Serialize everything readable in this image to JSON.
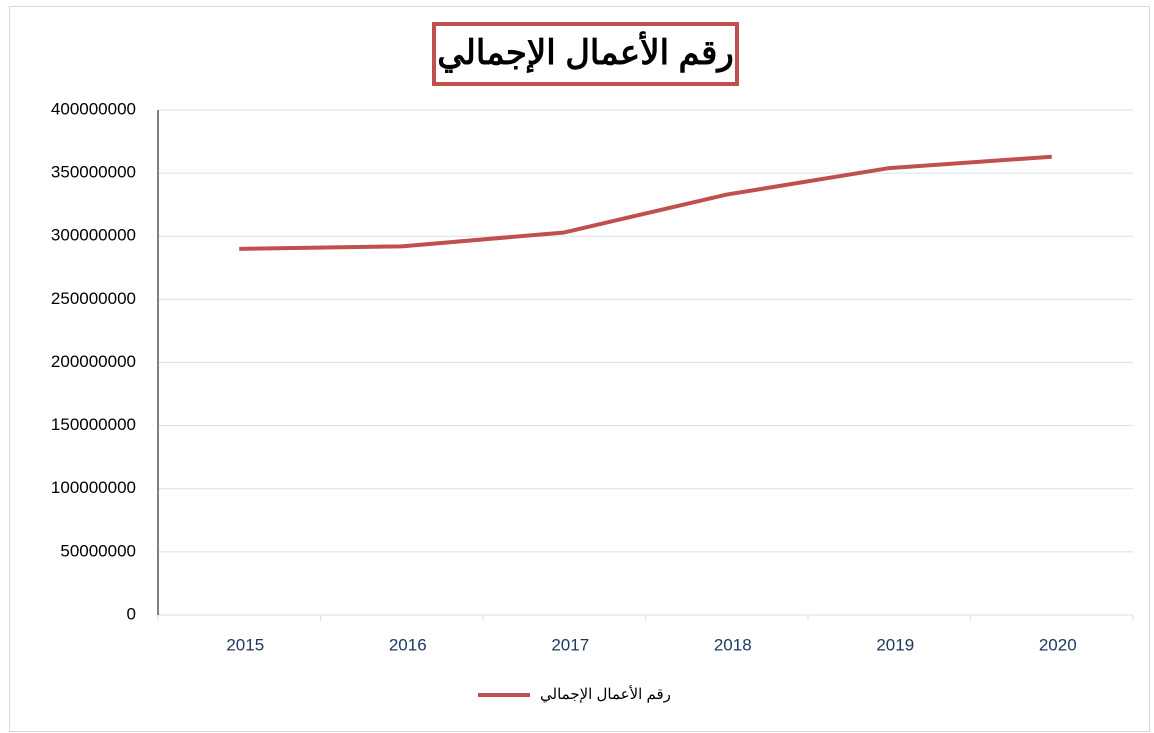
{
  "chart_data": {
    "type": "line",
    "title": "رقم الأعمال الإجمالي",
    "categories": [
      "2015",
      "2016",
      "2017",
      "2018",
      "2019",
      "2020"
    ],
    "series": [
      {
        "name": "رقم الأعمال الإجمالي",
        "color": "#c0504d",
        "values": [
          290000000,
          292000000,
          303000000,
          333000000,
          354000000,
          363000000
        ]
      }
    ],
    "ylim": [
      0,
      400000000
    ],
    "yticks": [
      0,
      50000000,
      100000000,
      150000000,
      200000000,
      250000000,
      300000000,
      350000000,
      400000000
    ],
    "grid": true,
    "legend": "bottom"
  }
}
